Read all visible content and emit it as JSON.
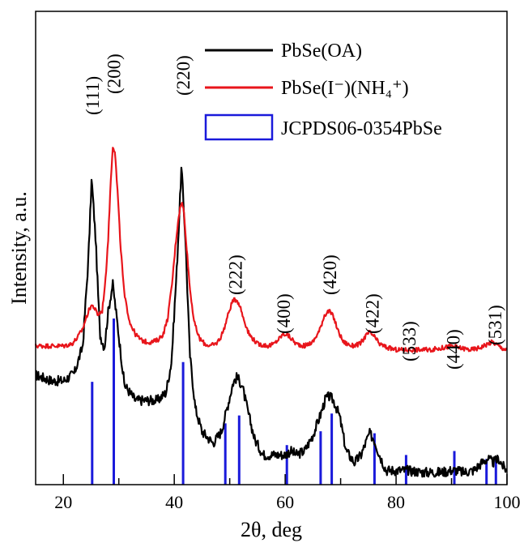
{
  "chart_data": {
    "type": "line",
    "title": "",
    "xlabel": "2θ, deg",
    "ylabel": "Intensity, a.u.",
    "xlim": [
      15,
      100
    ],
    "x_ticks": [
      20,
      40,
      60,
      80,
      100
    ],
    "y_ticks": [],
    "grid": false,
    "legend_position": "top-right",
    "series": [
      {
        "name": "PbSe(OA)",
        "color": "#000000",
        "x": [
          15,
          18,
          20,
          22,
          23.5,
          24.5,
          25.1,
          25.8,
          26.6,
          27.4,
          28.1,
          28.9,
          29.8,
          31,
          33,
          35,
          37,
          38.5,
          39.5,
          40.5,
          41.3,
          42.0,
          42.8,
          43.8,
          45,
          47,
          48.5,
          49.7,
          50.6,
          51.3,
          52.2,
          53.3,
          54.5,
          56,
          58,
          60,
          61,
          62,
          63.5,
          65,
          66.3,
          67.3,
          68,
          68.7,
          69.8,
          71,
          72.5,
          73.7,
          74.5,
          75.2,
          76,
          77,
          78.2,
          80,
          82,
          85,
          88,
          90,
          91,
          92,
          94,
          95.5,
          96.5,
          97.5,
          98.5,
          99.3,
          100
        ],
        "y": [
          0.265,
          0.25,
          0.25,
          0.27,
          0.34,
          0.56,
          0.77,
          0.62,
          0.37,
          0.335,
          0.43,
          0.5,
          0.39,
          0.24,
          0.2,
          0.2,
          0.2,
          0.22,
          0.3,
          0.55,
          0.8,
          0.62,
          0.32,
          0.18,
          0.12,
          0.09,
          0.12,
          0.19,
          0.245,
          0.26,
          0.24,
          0.17,
          0.1,
          0.06,
          0.06,
          0.06,
          0.07,
          0.06,
          0.07,
          0.11,
          0.16,
          0.205,
          0.21,
          0.2,
          0.16,
          0.07,
          0.04,
          0.06,
          0.09,
          0.115,
          0.1,
          0.06,
          0.02,
          0.02,
          0.02,
          0.015,
          0.015,
          0.02,
          0.02,
          0.015,
          0.02,
          0.04,
          0.05,
          0.04,
          0.05,
          0.03,
          0.02
        ]
      },
      {
        "name": "PbSe(I⁻)(NH₄⁺)",
        "color": "#e8151b",
        "x": [
          15,
          18,
          20,
          21.5,
          22.5,
          23.5,
          24.3,
          25,
          25.5,
          26.2,
          27,
          27.6,
          28.1,
          28.5,
          28.9,
          29.3,
          29.8,
          30.3,
          31,
          32,
          33,
          34,
          35,
          36,
          37,
          38,
          38.8,
          39.6,
          40.3,
          40.8,
          41.3,
          41.7,
          42.2,
          42.8,
          43.6,
          44.5,
          45.5,
          46.5,
          47.5,
          48.3,
          49,
          49.8,
          50.5,
          51.2,
          51.8,
          52.5,
          53.5,
          55,
          57,
          58,
          59,
          59.6,
          60.3,
          61,
          62,
          63.5,
          65,
          66.2,
          67.1,
          67.9,
          68.7,
          69.5,
          70.5,
          72,
          73.5,
          74.5,
          75.2,
          76,
          77,
          78.5,
          80,
          83,
          86,
          88.5,
          90,
          91.5,
          93.5,
          95,
          96.5,
          97.3,
          98,
          99,
          100
        ],
        "y": [
          0.34,
          0.34,
          0.34,
          0.345,
          0.36,
          0.385,
          0.42,
          0.445,
          0.44,
          0.42,
          0.43,
          0.51,
          0.62,
          0.75,
          0.855,
          0.84,
          0.73,
          0.6,
          0.47,
          0.4,
          0.37,
          0.355,
          0.35,
          0.35,
          0.355,
          0.37,
          0.41,
          0.5,
          0.61,
          0.675,
          0.71,
          0.69,
          0.6,
          0.49,
          0.4,
          0.36,
          0.345,
          0.34,
          0.345,
          0.36,
          0.385,
          0.425,
          0.455,
          0.46,
          0.445,
          0.41,
          0.37,
          0.345,
          0.34,
          0.345,
          0.36,
          0.37,
          0.37,
          0.36,
          0.345,
          0.34,
          0.35,
          0.38,
          0.42,
          0.43,
          0.415,
          0.38,
          0.35,
          0.34,
          0.345,
          0.365,
          0.375,
          0.365,
          0.345,
          0.335,
          0.33,
          0.33,
          0.33,
          0.335,
          0.34,
          0.335,
          0.33,
          0.335,
          0.345,
          0.35,
          0.345,
          0.335,
          0.33
        ]
      }
    ],
    "reference": {
      "name": "JCPDS06-0354PbSe",
      "color": "#1a1adb",
      "positions": [
        25.2,
        29.1,
        41.6,
        49.2,
        51.7,
        60.3,
        66.4,
        68.4,
        76.1,
        81.8,
        90.5,
        96.3,
        98
      ],
      "heights": [
        0.26,
        0.42,
        0.31,
        0.155,
        0.175,
        0.1,
        0.135,
        0.18,
        0.13,
        0.075,
        0.085,
        0.065,
        0.07
      ]
    },
    "annotations": [
      {
        "text": "(111)",
        "x": 25.2
      },
      {
        "text": "(200)",
        "x": 29.1
      },
      {
        "text": "(220)",
        "x": 41.6
      },
      {
        "text": "(222)",
        "x": 51.0
      },
      {
        "text": "(400)",
        "x": 59.7
      },
      {
        "text": "(420)",
        "x": 68.0
      },
      {
        "text": "(422)",
        "x": 75.7
      },
      {
        "text": "(533)",
        "x": 82.3
      },
      {
        "text": "(440)",
        "x": 90.3
      },
      {
        "text": "(531)",
        "x": 97.8
      }
    ]
  }
}
